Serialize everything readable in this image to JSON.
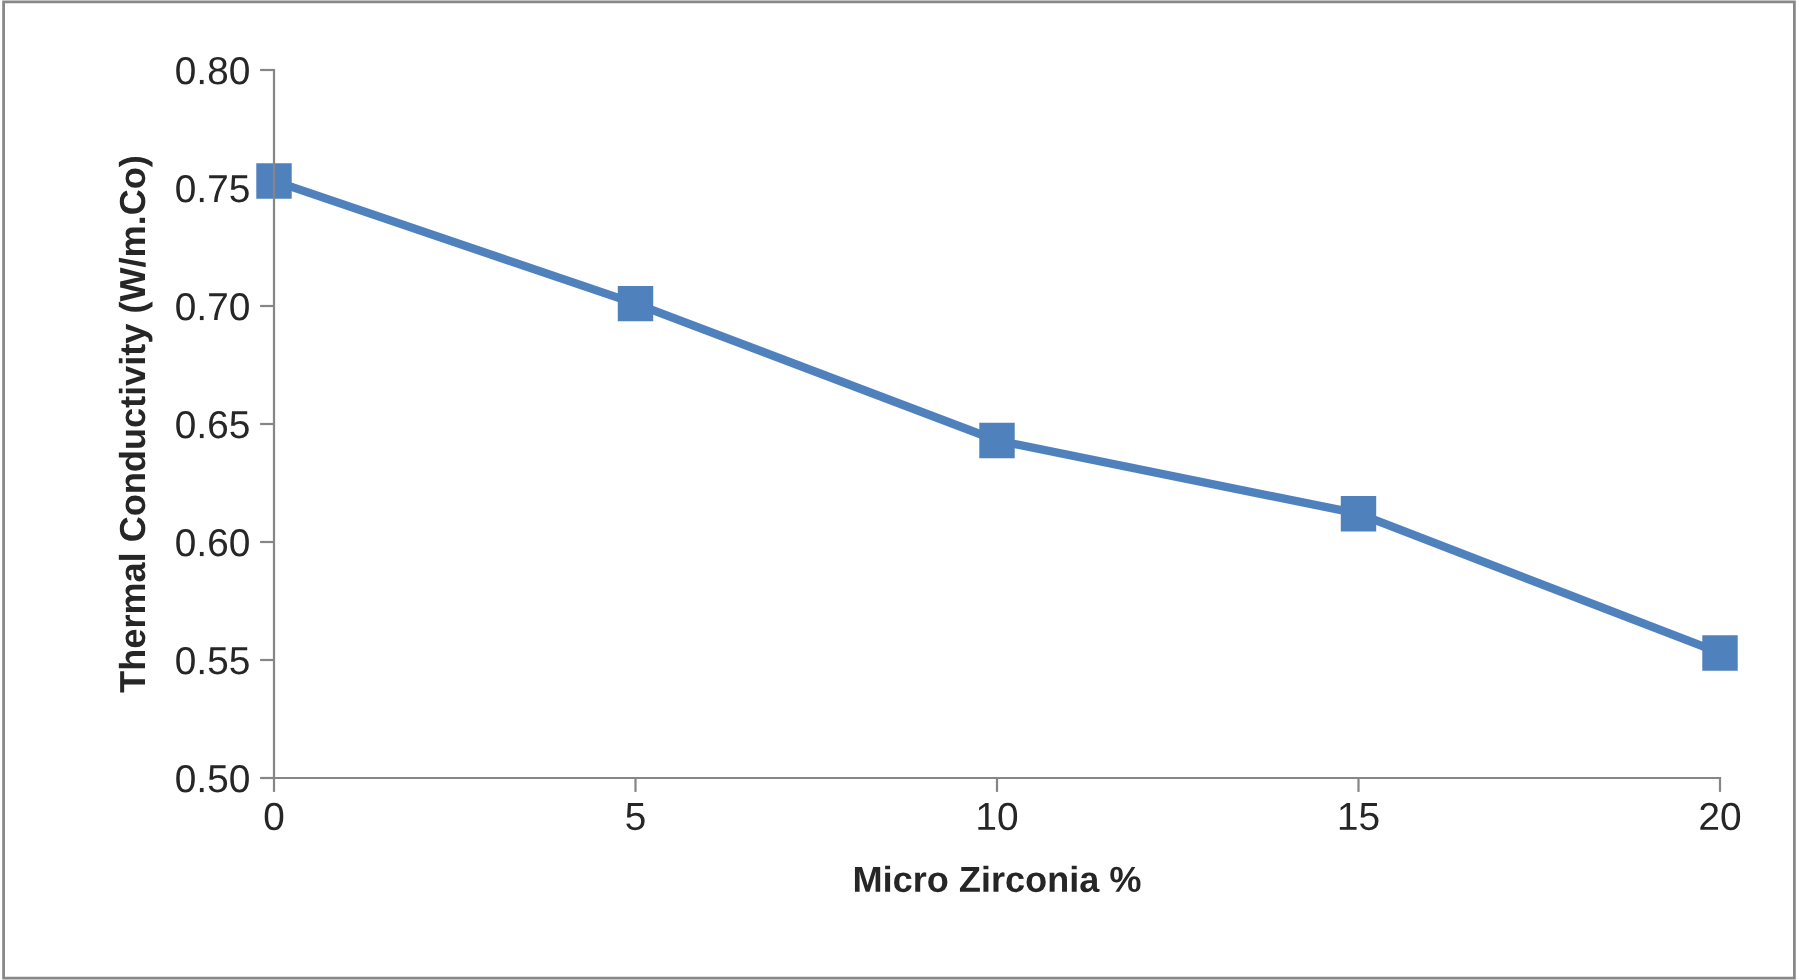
{
  "chart_data": {
    "type": "line",
    "xlabel": "Micro Zirconia %",
    "ylabel": "Thermal Conductivity (W/m.Co)",
    "x": [
      0,
      5,
      10,
      15,
      20
    ],
    "series": [
      {
        "color": "#4f81bd",
        "values": [
          0.753,
          0.701,
          0.643,
          0.612,
          0.553
        ]
      }
    ],
    "xlim": [
      0,
      20
    ],
    "xticks": [
      0,
      5,
      10,
      15,
      20
    ],
    "ylim": [
      0.5,
      0.8
    ],
    "yticks": [
      {
        "value": 0.5,
        "label": "0.50"
      },
      {
        "value": 0.55,
        "label": "0.55"
      },
      {
        "value": 0.6,
        "label": "0.60"
      },
      {
        "value": 0.65,
        "label": "0.65"
      },
      {
        "value": 0.7,
        "label": "0.70"
      },
      {
        "value": 0.75,
        "label": "0.75"
      },
      {
        "value": 0.8,
        "label": "0.80"
      }
    ],
    "grid": false,
    "marker": "square",
    "line_style": "solid"
  }
}
